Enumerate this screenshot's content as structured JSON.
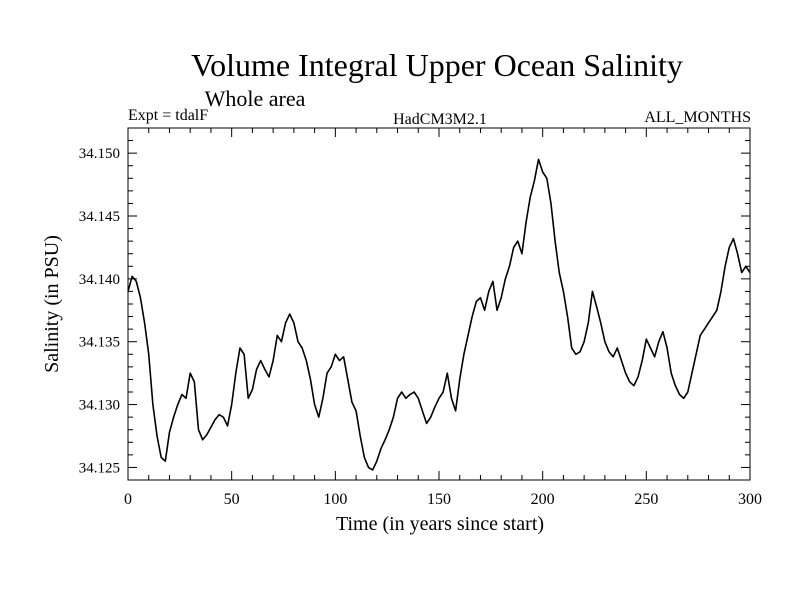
{
  "chart_data": {
    "type": "line",
    "title": "Volume Integral Upper Ocean Salinity",
    "subtitle": "Whole area",
    "header_left": "Expt = tdalF",
    "header_center": "HadCM3M2.1",
    "header_right": "ALL_MONTHS",
    "xlabel": "Time (in years since start)",
    "ylabel": "Salinity (in PSU)",
    "xlim": [
      0,
      300
    ],
    "ylim": [
      34.124,
      34.152
    ],
    "xticks": [
      0,
      50,
      100,
      150,
      200,
      250,
      300
    ],
    "yticks": [
      34.125,
      34.13,
      34.135,
      34.14,
      34.145,
      34.15
    ],
    "ytick_labels": [
      "34.125",
      "34.130",
      "34.135",
      "34.140",
      "34.145",
      "34.150"
    ],
    "color": "#000000",
    "series": [
      {
        "name": "Salinity",
        "x": [
          0,
          2,
          4,
          6,
          8,
          10,
          12,
          14,
          16,
          18,
          20,
          22,
          24,
          26,
          28,
          30,
          32,
          34,
          36,
          38,
          40,
          42,
          44,
          46,
          48,
          50,
          52,
          54,
          56,
          58,
          60,
          62,
          64,
          66,
          68,
          70,
          72,
          74,
          76,
          78,
          80,
          82,
          84,
          86,
          88,
          90,
          92,
          94,
          96,
          98,
          100,
          102,
          104,
          106,
          108,
          110,
          112,
          114,
          116,
          118,
          120,
          122,
          124,
          126,
          128,
          130,
          132,
          134,
          136,
          138,
          140,
          142,
          144,
          146,
          148,
          150,
          152,
          154,
          156,
          158,
          160,
          162,
          164,
          166,
          168,
          170,
          172,
          174,
          176,
          178,
          180,
          182,
          184,
          186,
          188,
          190,
          192,
          194,
          196,
          198,
          200,
          202,
          204,
          206,
          208,
          210,
          212,
          214,
          216,
          218,
          220,
          222,
          224,
          226,
          228,
          230,
          232,
          234,
          236,
          238,
          240,
          242,
          244,
          246,
          248,
          250,
          252,
          254,
          256,
          258,
          260,
          262,
          264,
          266,
          268,
          270,
          272,
          274,
          276,
          278,
          280,
          282,
          284,
          286,
          288,
          290,
          292,
          294,
          296,
          298,
          300
        ],
        "values": [
          34.139,
          34.1402,
          34.1398,
          34.1385,
          34.1365,
          34.134,
          34.13,
          34.1275,
          34.1258,
          34.1255,
          34.1278,
          34.129,
          34.13,
          34.1308,
          34.1305,
          34.1325,
          34.1318,
          34.128,
          34.1272,
          34.1276,
          34.1282,
          34.1288,
          34.1292,
          34.129,
          34.1283,
          34.13,
          34.1325,
          34.1345,
          34.134,
          34.1305,
          34.1312,
          34.1328,
          34.1335,
          34.1328,
          34.1322,
          34.1335,
          34.1355,
          34.135,
          34.1365,
          34.1372,
          34.1365,
          34.135,
          34.1345,
          34.1335,
          34.132,
          34.13,
          34.129,
          34.1305,
          34.1325,
          34.133,
          34.134,
          34.1335,
          34.1338,
          34.132,
          34.1302,
          34.1295,
          34.1275,
          34.1258,
          34.125,
          34.1248,
          34.1255,
          34.1265,
          34.1272,
          34.128,
          34.129,
          34.1305,
          34.131,
          34.1305,
          34.1308,
          34.131,
          34.1305,
          34.1295,
          34.1285,
          34.129,
          34.1298,
          34.1305,
          34.131,
          34.1325,
          34.1305,
          34.1295,
          34.132,
          34.134,
          34.1355,
          34.137,
          34.1382,
          34.1385,
          34.1375,
          34.139,
          34.1398,
          34.1375,
          34.1385,
          34.14,
          34.141,
          34.1425,
          34.143,
          34.142,
          34.1445,
          34.1465,
          34.1478,
          34.1495,
          34.1485,
          34.148,
          34.146,
          34.143,
          34.1405,
          34.139,
          34.137,
          34.1345,
          34.134,
          34.1342,
          34.135,
          34.1365,
          34.139,
          34.1378,
          34.1365,
          34.135,
          34.1342,
          34.1338,
          34.1345,
          34.1335,
          34.1325,
          34.1318,
          34.1315,
          34.1322,
          34.1335,
          34.1352,
          34.1345,
          34.1338,
          34.135,
          34.1358,
          34.1345,
          34.1325,
          34.1315,
          34.1308,
          34.1305,
          34.131,
          34.1325,
          34.134,
          34.1355,
          34.136,
          34.1365,
          34.137,
          34.1375,
          34.139,
          34.141,
          34.1425,
          34.1432,
          34.142,
          34.1405,
          34.141,
          34.1405
        ]
      }
    ]
  }
}
